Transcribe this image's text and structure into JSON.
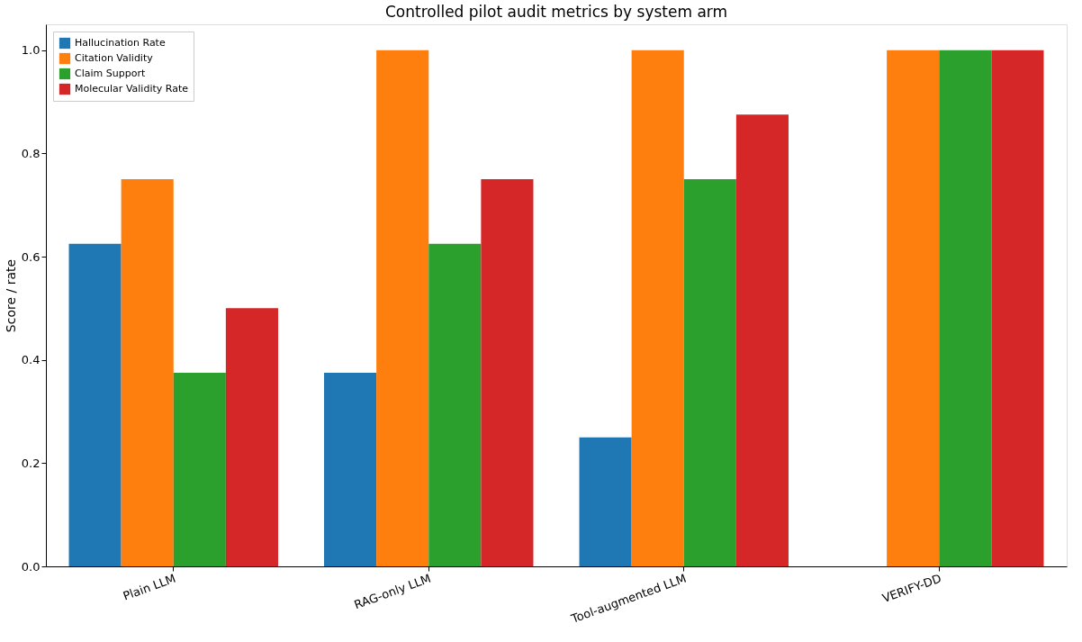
{
  "chart_data": {
    "type": "bar",
    "title": "Controlled pilot audit metrics by system arm",
    "ylabel": "Score / rate",
    "categories": [
      "Plain LLM",
      "RAG-only LLM",
      "Tool-augmented LLM",
      "VERIFY-DD"
    ],
    "series": [
      {
        "name": "Hallucination Rate",
        "color": "#1f77b4",
        "values": [
          0.625,
          0.375,
          0.25,
          0
        ]
      },
      {
        "name": "Citation Validity",
        "color": "#ff7f0e",
        "values": [
          0.75,
          1.0,
          1.0,
          1.0
        ]
      },
      {
        "name": "Claim Support",
        "color": "#2ca02c",
        "values": [
          0.375,
          0.625,
          0.75,
          1.0
        ]
      },
      {
        "name": "Molecular Validity Rate",
        "color": "#d62728",
        "values": [
          0.5,
          0.75,
          0.875,
          1.0
        ]
      }
    ],
    "ylim": [
      0,
      1.05
    ],
    "yticks": [
      {
        "value": 0,
        "label": "0.0"
      },
      {
        "value": 0.2,
        "label": "0.2"
      },
      {
        "value": 0.4,
        "label": "0.4"
      },
      {
        "value": 0.6,
        "label": "0.6"
      },
      {
        "value": 0.8,
        "label": "0.8"
      },
      {
        "value": 1.0,
        "label": "1.0"
      }
    ],
    "grid": false,
    "legend": "top left"
  }
}
